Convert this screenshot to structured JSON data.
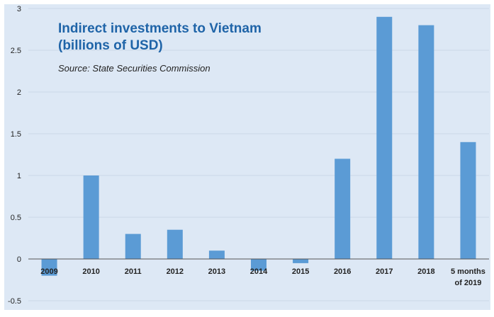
{
  "chart_data": {
    "type": "bar",
    "title": "Indirect investments to Vietnam",
    "subtitle": "(billions of USD)",
    "source": "Source: State Securities Commission",
    "xlabel": "",
    "ylabel": "",
    "categories": [
      "2009",
      "2010",
      "2011",
      "2012",
      "2013",
      "2014",
      "2015",
      "2016",
      "2017",
      "2018",
      "5 months of 2019"
    ],
    "category_lines": [
      [
        "2009"
      ],
      [
        "2010"
      ],
      [
        "2011"
      ],
      [
        "2012"
      ],
      [
        "2013"
      ],
      [
        "2014"
      ],
      [
        "2015"
      ],
      [
        "2016"
      ],
      [
        "2017"
      ],
      [
        "2018"
      ],
      [
        "5 months",
        "of 2019"
      ]
    ],
    "values": [
      -0.2,
      1.0,
      0.3,
      0.35,
      0.1,
      -0.14,
      -0.05,
      1.2,
      2.9,
      2.8,
      1.4
    ],
    "ylim": [
      -0.5,
      3
    ],
    "yticks": [
      -0.5,
      0,
      0.5,
      1,
      1.5,
      2,
      2.5,
      3
    ],
    "ytick_labels": [
      "-0.5",
      "0",
      "0.5",
      "1",
      "1.5",
      "2",
      "2.5",
      "3"
    ],
    "grid": true,
    "legend": "none",
    "colors": {
      "bar": "#5b9bd5",
      "background": "#dde8f5",
      "title": "#1f64a8"
    }
  }
}
